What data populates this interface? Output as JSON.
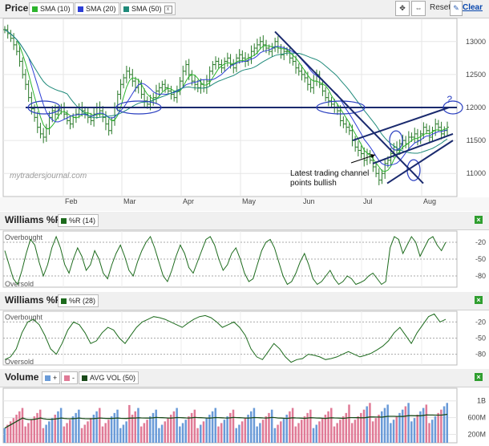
{
  "colors": {
    "price_bar": "#2a7a2a",
    "sma10": "#2db52d",
    "sma20": "#2d3fd6",
    "sma50": "#1f8a7a",
    "trendline": "#1a2a6e",
    "ellipse": "#2a3fc0",
    "indicator": "#1d6b1d",
    "vol_up": "#6a9bd8",
    "vol_down": "#e07a96",
    "avgvol": "#1a4a1a",
    "close_btn": "#2f9e2f"
  },
  "toolbar": {
    "reset_label": "Reset",
    "clear_label": "Clear"
  },
  "price_panel": {
    "title": "Price",
    "legend": [
      {
        "label": "SMA (10)",
        "color": "#2db52d"
      },
      {
        "label": "SMA (20)",
        "color": "#2d3fd6"
      },
      {
        "label": "SMA (50)",
        "color": "#1f8a7a"
      }
    ],
    "watermark": "mytradersjournal.com",
    "annotation": "Latest trading channel\npoints bullish",
    "question_mark": "?"
  },
  "wr14_panel": {
    "title": "Williams %R",
    "legend": "%R (14)",
    "overbought": "Overbought",
    "oversold": "Oversold"
  },
  "wr28_panel": {
    "title": "Williams %R",
    "legend": "%R (28)",
    "overbought": "Overbought",
    "oversold": "Oversold"
  },
  "volume_panel": {
    "title": "Volume",
    "up_label": "+",
    "down_label": "-",
    "avg_label": "AVG VOL (50)"
  },
  "chart_data": [
    {
      "type": "ohlc",
      "panel": "price",
      "x_ticks": [
        "Feb",
        "Mar",
        "Apr",
        "May",
        "Jun",
        "Jul",
        "Aug"
      ],
      "y_ticks": [
        11000,
        11500,
        12000,
        12500,
        13000
      ],
      "ylim": [
        10650,
        13350
      ],
      "closes": [
        13180,
        13120,
        13050,
        12950,
        12850,
        12700,
        12500,
        12350,
        12150,
        11980,
        11850,
        11700,
        11600,
        11550,
        11680,
        11850,
        11950,
        11900,
        11950,
        12000,
        11900,
        11800,
        11750,
        11850,
        11900,
        12000,
        11950,
        11900,
        11850,
        11800,
        11900,
        12000,
        11950,
        11850,
        11750,
        11650,
        11800,
        12000,
        12200,
        12350,
        12450,
        12550,
        12500,
        12400,
        12300,
        12350,
        12200,
        12100,
        12050,
        12100,
        12150,
        12250,
        12300,
        12350,
        12300,
        12250,
        12200,
        12150,
        12250,
        12400,
        12550,
        12650,
        12500,
        12400,
        12350,
        12300,
        12350,
        12300,
        12400,
        12550,
        12650,
        12700,
        12650,
        12600,
        12700,
        12750,
        12650,
        12600,
        12750,
        12800,
        12750,
        12700,
        12750,
        12850,
        12900,
        12950,
        13000,
        12950,
        12900,
        12850,
        12900,
        13000,
        12900,
        12800,
        12850,
        12850,
        12750,
        12700,
        12600,
        12550,
        12500,
        12450,
        12350,
        12300,
        12400,
        12500,
        12350,
        12250,
        12150,
        12100,
        12050,
        12000,
        11950,
        11800,
        11750,
        11700,
        11650,
        11500,
        11400,
        11350,
        11300,
        11200,
        11300,
        11200,
        11100,
        11000,
        10900,
        11000,
        11150,
        11200,
        11300,
        11400,
        11350,
        11450,
        11500,
        11450,
        11550,
        11550,
        11600,
        11500,
        11600,
        11700,
        11650,
        11550,
        11650,
        11750,
        11700,
        11600,
        11650,
        11700
      ]
    },
    {
      "type": "line",
      "panel": "williams_r_14",
      "y_ticks": [
        -20,
        -50,
        -80
      ],
      "ylim": [
        -100,
        0
      ],
      "values": [
        -35,
        -60,
        -85,
        -95,
        -70,
        -40,
        -15,
        -25,
        -55,
        -80,
        -60,
        -30,
        -10,
        -30,
        -60,
        -75,
        -50,
        -30,
        -45,
        -70,
        -60,
        -35,
        -50,
        -75,
        -85,
        -60,
        -40,
        -25,
        -45,
        -70,
        -80,
        -55,
        -35,
        -20,
        -10,
        -30,
        -55,
        -80,
        -90,
        -70,
        -45,
        -25,
        -40,
        -65,
        -75,
        -55,
        -35,
        -15,
        -10,
        -25,
        -50,
        -70,
        -60,
        -40,
        -30,
        -50,
        -75,
        -90,
        -85,
        -60,
        -35,
        -20,
        -15,
        -30,
        -55,
        -80,
        -95,
        -90,
        -75,
        -55,
        -40,
        -60,
        -85,
        -95,
        -90,
        -80,
        -70,
        -85,
        -95,
        -90,
        -80,
        -85,
        -95,
        -92,
        -88,
        -80,
        -75,
        -85,
        -95,
        -90,
        -30,
        -10,
        -15,
        -40,
        -25,
        -10,
        -20,
        -45,
        -30,
        -15,
        -10,
        -25,
        -35,
        -20
      ]
    },
    {
      "type": "line",
      "panel": "williams_r_28",
      "y_ticks": [
        -20,
        -50,
        -80
      ],
      "ylim": [
        -100,
        0
      ],
      "values": [
        -90,
        -85,
        -70,
        -40,
        -20,
        -15,
        -25,
        -45,
        -70,
        -80,
        -60,
        -35,
        -20,
        -25,
        -40,
        -60,
        -55,
        -40,
        -30,
        -35,
        -50,
        -60,
        -45,
        -30,
        -20,
        -15,
        -10,
        -12,
        -15,
        -20,
        -25,
        -30,
        -22,
        -15,
        -10,
        -8,
        -12,
        -20,
        -30,
        -25,
        -20,
        -30,
        -45,
        -70,
        -85,
        -90,
        -75,
        -60,
        -70,
        -85,
        -95,
        -90,
        -88,
        -80,
        -82,
        -85,
        -90,
        -88,
        -85,
        -80,
        -75,
        -80,
        -85,
        -82,
        -78,
        -72,
        -65,
        -55,
        -40,
        -30,
        -45,
        -60,
        -40,
        -25,
        -10,
        -5,
        -20,
        -15
      ]
    },
    {
      "type": "bar",
      "panel": "volume",
      "y_ticks": [
        "1B",
        "600M",
        "200M"
      ],
      "ylim": [
        0,
        1300000000
      ],
      "avg_series": "AVG VOL (50)"
    }
  ]
}
